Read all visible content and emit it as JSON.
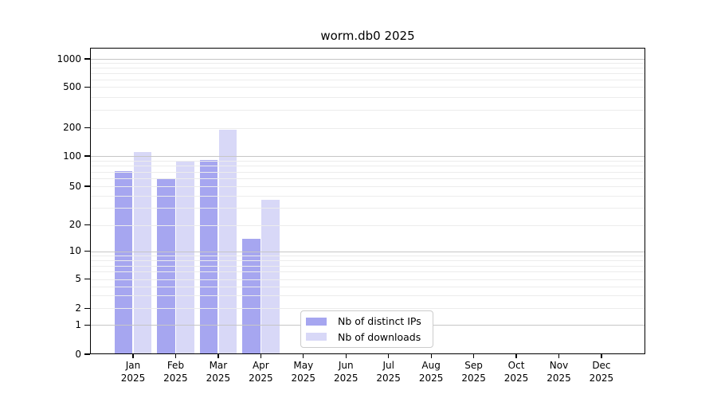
{
  "chart_data": {
    "type": "bar",
    "title": "worm.db0 2025",
    "yscale": "symlog",
    "ylim": [
      0,
      1300
    ],
    "yticks": [
      0,
      1,
      2,
      5,
      10,
      20,
      50,
      100,
      200,
      500,
      1000
    ],
    "grid": "both",
    "legend_position": "lower-center-inside",
    "categories": [
      {
        "month": "Jan",
        "year": "2025"
      },
      {
        "month": "Feb",
        "year": "2025"
      },
      {
        "month": "Mar",
        "year": "2025"
      },
      {
        "month": "Apr",
        "year": "2025"
      },
      {
        "month": "May",
        "year": "2025"
      },
      {
        "month": "Jun",
        "year": "2025"
      },
      {
        "month": "Jul",
        "year": "2025"
      },
      {
        "month": "Aug",
        "year": "2025"
      },
      {
        "month": "Sep",
        "year": "2025"
      },
      {
        "month": "Oct",
        "year": "2025"
      },
      {
        "month": "Nov",
        "year": "2025"
      },
      {
        "month": "Dec",
        "year": "2025"
      }
    ],
    "series": [
      {
        "name": "Nb of distinct IPs",
        "color": "#a6a6f0",
        "values": [
          71,
          60,
          92,
          14,
          0,
          0,
          0,
          0,
          0,
          0,
          0,
          0
        ]
      },
      {
        "name": "Nb of downloads",
        "color": "#d8d8f7",
        "values": [
          110,
          90,
          193,
          36,
          0,
          0,
          0,
          0,
          0,
          0,
          0,
          0
        ]
      }
    ]
  },
  "colors": {
    "distinct_ips": "#a6a6f0",
    "downloads": "#d8d8f7"
  }
}
